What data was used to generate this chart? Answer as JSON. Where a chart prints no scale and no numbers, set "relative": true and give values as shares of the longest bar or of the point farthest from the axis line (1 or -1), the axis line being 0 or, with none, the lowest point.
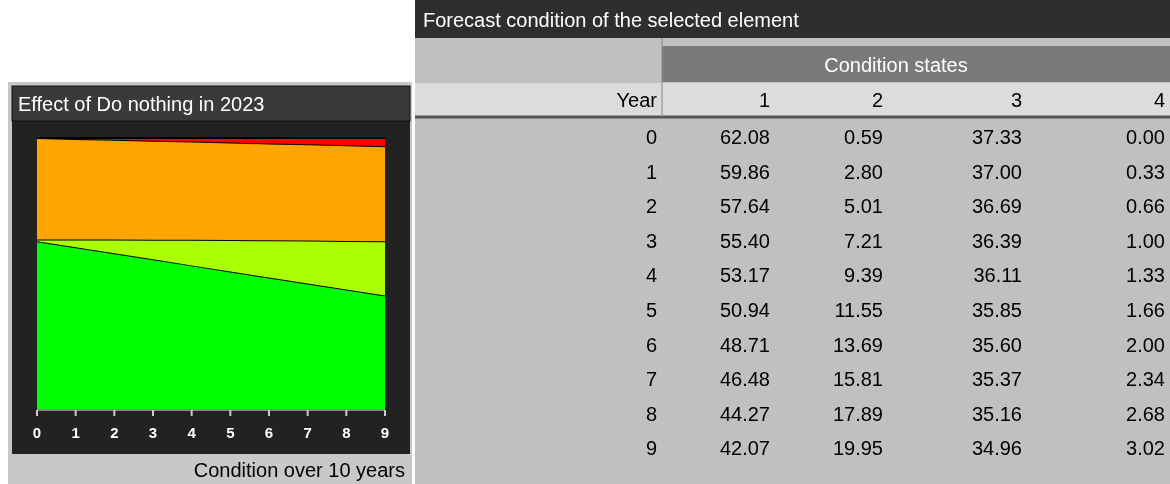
{
  "chart_data": [
    {
      "type": "area",
      "stacked": true,
      "relative": true,
      "title": "Effect of Do nothing in 2023",
      "xlabel": "Condition over 10 years",
      "x": [
        0,
        1,
        2,
        3,
        4,
        5,
        6,
        7,
        8,
        9
      ],
      "xlim": [
        0,
        9
      ],
      "xticks": [
        0,
        1,
        2,
        3,
        4,
        5,
        6,
        7,
        8,
        9
      ],
      "grid": false,
      "series": [
        {
          "color": "#00ff00",
          "values": [
            0.6208,
            0.5986,
            0.5764,
            0.554,
            0.5317,
            0.5094,
            0.4871,
            0.4648,
            0.4427,
            0.4207
          ]
        },
        {
          "color": "#aaff00",
          "values": [
            0.0059,
            0.028,
            0.0501,
            0.0721,
            0.0939,
            0.1155,
            0.1369,
            0.1581,
            0.1789,
            0.1995
          ]
        },
        {
          "color": "#ffa500",
          "values": [
            0.3733,
            0.37,
            0.3669,
            0.3639,
            0.3611,
            0.3585,
            0.356,
            0.3537,
            0.3516,
            0.3496
          ]
        },
        {
          "color": "#ff0000",
          "values": [
            0.0,
            0.0033,
            0.0066,
            0.01,
            0.0133,
            0.0166,
            0.02,
            0.0234,
            0.0268,
            0.0302
          ]
        }
      ]
    },
    {
      "type": "heatmap",
      "title": "Forecast condition of the selected element",
      "xlabel": "Condition states",
      "ylabel": "Year",
      "categories": [
        "1",
        "2",
        "3",
        "4"
      ],
      "y_categories": [
        "0",
        "1",
        "2",
        "3",
        "4",
        "5",
        "6",
        "7",
        "8",
        "9"
      ],
      "cells": [
        [
          62.08,
          0.59,
          37.33,
          0.0
        ],
        [
          59.86,
          2.8,
          37.0,
          0.33
        ],
        [
          57.64,
          5.01,
          36.69,
          0.66
        ],
        [
          55.4,
          7.21,
          36.39,
          1.0
        ],
        [
          53.17,
          9.39,
          36.11,
          1.33
        ],
        [
          50.94,
          11.55,
          35.85,
          1.66
        ],
        [
          48.71,
          13.69,
          35.6,
          2.0
        ],
        [
          46.48,
          15.81,
          35.37,
          2.34
        ],
        [
          44.27,
          17.89,
          35.16,
          2.68
        ],
        [
          42.07,
          19.95,
          34.96,
          3.02
        ]
      ],
      "cell_labels": [
        [
          "62.08",
          "0.59",
          "37.33",
          "0.00"
        ],
        [
          "59.86",
          "2.80",
          "37.00",
          "0.33"
        ],
        [
          "57.64",
          "5.01",
          "36.69",
          "0.66"
        ],
        [
          "55.40",
          "7.21",
          "36.39",
          "1.00"
        ],
        [
          "53.17",
          "9.39",
          "36.11",
          "1.33"
        ],
        [
          "50.94",
          "11.55",
          "35.85",
          "1.66"
        ],
        [
          "48.71",
          "13.69",
          "35.60",
          "2.00"
        ],
        [
          "46.48",
          "15.81",
          "35.37",
          "2.34"
        ],
        [
          "44.27",
          "17.89",
          "35.16",
          "2.68"
        ],
        [
          "42.07",
          "19.95",
          "34.96",
          "3.02"
        ]
      ]
    }
  ]
}
